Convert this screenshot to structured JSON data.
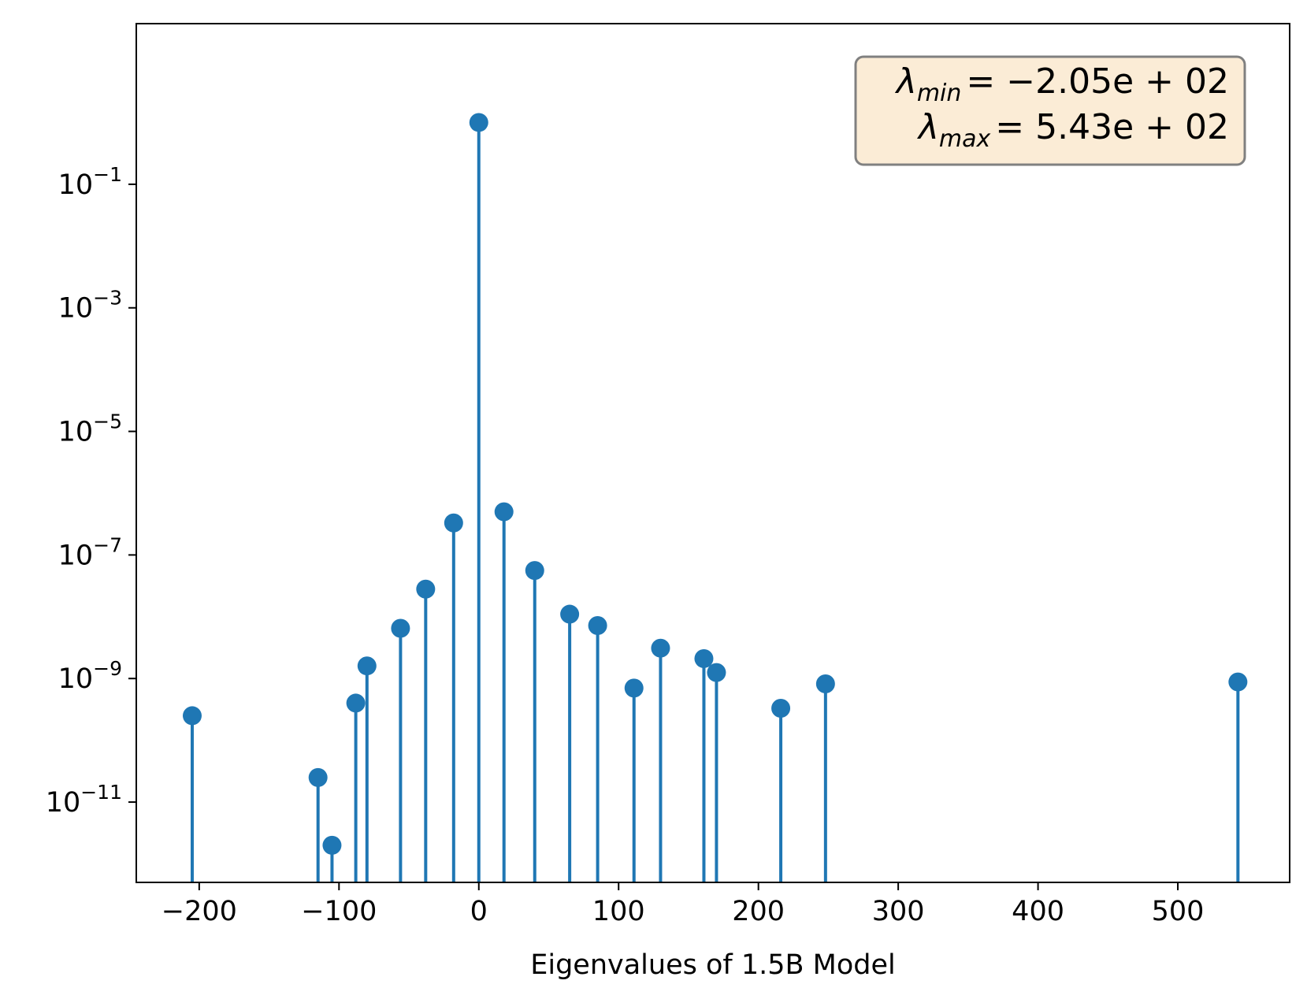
{
  "chart_data": {
    "type": "scatter",
    "style": "stem",
    "title": "",
    "xlabel": "Eigenvalues of 1.5B Model",
    "ylabel": "",
    "xlim": [
      -245,
      580
    ],
    "ylim_exponent": [
      -12.3,
      1.6
    ],
    "y_scale": "log",
    "x_ticks": [
      -200,
      -100,
      0,
      100,
      200,
      300,
      400,
      500
    ],
    "x_tick_labels": [
      "−200",
      "−100",
      "0",
      "100",
      "200",
      "300",
      "400",
      "500"
    ],
    "y_tick_exponents": [
      -1,
      -3,
      -5,
      -7,
      -9,
      -11
    ],
    "y_tick_base": "10",
    "y_tick_exp_labels": [
      "−1",
      "−3",
      "−5",
      "−7",
      "−9",
      "−11"
    ],
    "color": "#1f77b4",
    "grid": false,
    "points": [
      {
        "x": -205,
        "y": 2.5e-10
      },
      {
        "x": -115,
        "y": 2.5e-11
      },
      {
        "x": -105,
        "y": 2e-12
      },
      {
        "x": -88,
        "y": 4e-10
      },
      {
        "x": -80,
        "y": 1.6e-09
      },
      {
        "x": -56,
        "y": 6.5e-09
      },
      {
        "x": -38,
        "y": 2.8e-08
      },
      {
        "x": -18,
        "y": 3.3e-07
      },
      {
        "x": 0,
        "y": 1.0
      },
      {
        "x": 18,
        "y": 5e-07
      },
      {
        "x": 40,
        "y": 5.6e-08
      },
      {
        "x": 65,
        "y": 1.1e-08
      },
      {
        "x": 85,
        "y": 7.2e-09
      },
      {
        "x": 111,
        "y": 7e-10
      },
      {
        "x": 130,
        "y": 3.1e-09
      },
      {
        "x": 161,
        "y": 2.1e-09
      },
      {
        "x": 170,
        "y": 1.25e-09
      },
      {
        "x": 216,
        "y": 3.3e-10
      },
      {
        "x": 248,
        "y": 8.2e-10
      },
      {
        "x": 543,
        "y": 8.8e-10
      }
    ],
    "legend": {
      "placement": "top-right",
      "background": "#fbecd6",
      "border": "#808080",
      "lines": [
        {
          "symbol": "λ",
          "sub": "min",
          "text": "= −2.05e + 02"
        },
        {
          "symbol": "λ",
          "sub": "max",
          "text": "= 5.43e + 02"
        }
      ]
    }
  }
}
